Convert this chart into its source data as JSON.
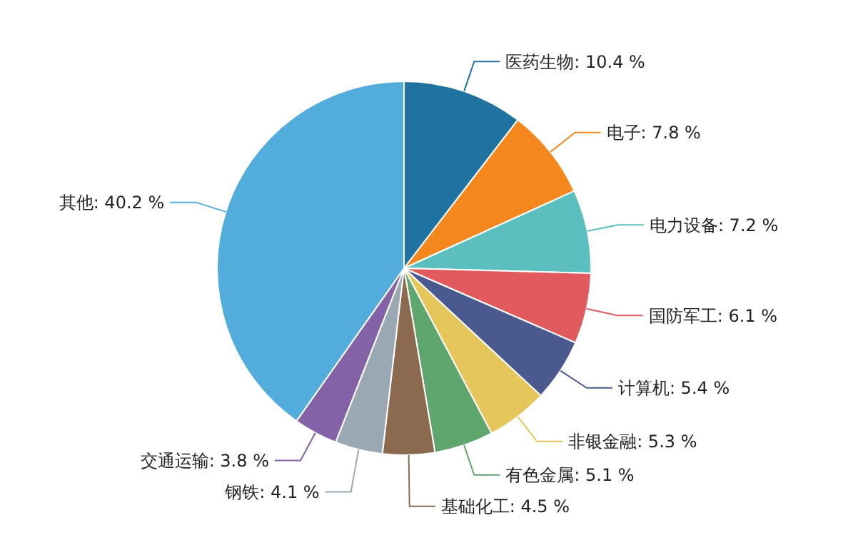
{
  "chart_data": {
    "type": "pie",
    "categories": [
      "医药生物",
      "电子",
      "电力设备",
      "国防军工",
      "计算机",
      "非银金融",
      "有色金属",
      "基础化工",
      "钢铁",
      "交通运输",
      "其他"
    ],
    "values": [
      10.4,
      7.8,
      7.2,
      6.1,
      5.4,
      5.3,
      5.1,
      4.5,
      4.1,
      3.8,
      40.2
    ],
    "value_labels": [
      "10.4 %",
      "7.8 %",
      "7.2 %",
      "6.1 %",
      "5.4 %",
      "5.3 %",
      "5.1 %",
      "4.5 %",
      "4.1 %",
      "3.8 %",
      "40.2 %"
    ],
    "colors": [
      "#2072a0",
      "#f5871f",
      "#5bbfc0",
      "#e05a5e",
      "#4a5a8e",
      "#e5c65a",
      "#5fa56e",
      "#8c6a4f",
      "#9aa8b4",
      "#8462a8",
      "#52acdc"
    ]
  }
}
